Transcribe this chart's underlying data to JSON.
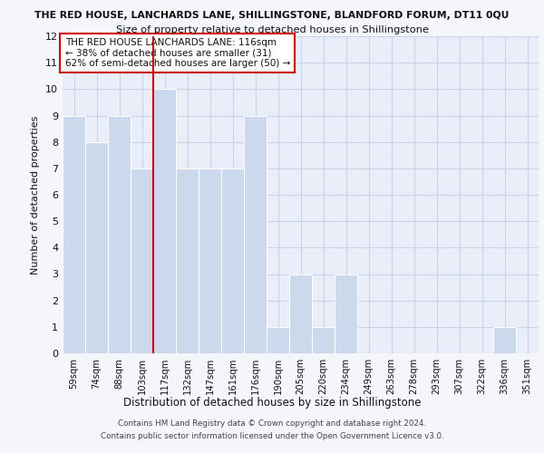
{
  "title_line1": "THE RED HOUSE, LANCHARDS LANE, SHILLINGSTONE, BLANDFORD FORUM, DT11 0QU",
  "title_line2": "Size of property relative to detached houses in Shillingstone",
  "xlabel": "Distribution of detached houses by size in Shillingstone",
  "ylabel": "Number of detached properties",
  "categories": [
    "59sqm",
    "74sqm",
    "88sqm",
    "103sqm",
    "117sqm",
    "132sqm",
    "147sqm",
    "161sqm",
    "176sqm",
    "190sqm",
    "205sqm",
    "220sqm",
    "234sqm",
    "249sqm",
    "263sqm",
    "278sqm",
    "293sqm",
    "307sqm",
    "322sqm",
    "336sqm",
    "351sqm"
  ],
  "values": [
    9,
    8,
    9,
    7,
    10,
    7,
    7,
    7,
    9,
    1,
    3,
    1,
    3,
    0,
    0,
    0,
    0,
    0,
    0,
    1,
    0
  ],
  "bar_color": "#ccd9ed",
  "bar_edgecolor": "#ffffff",
  "grid_color": "#c8d4e8",
  "highlight_index": 4,
  "highlight_line_color": "#cc0000",
  "annotation_text_line1": "THE RED HOUSE LANCHARDS LANE: 116sqm",
  "annotation_text_line2": "← 38% of detached houses are smaller (31)",
  "annotation_text_line3": "62% of semi-detached houses are larger (50) →",
  "annotation_box_edgecolor": "#cc0000",
  "annotation_box_facecolor": "#ffffff",
  "ylim": [
    0,
    12
  ],
  "yticks": [
    0,
    1,
    2,
    3,
    4,
    5,
    6,
    7,
    8,
    9,
    10,
    11,
    12
  ],
  "footer_line1": "Contains HM Land Registry data © Crown copyright and database right 2024.",
  "footer_line2": "Contains public sector information licensed under the Open Government Licence v3.0.",
  "bg_color": "#f4f6fb",
  "plot_bg_color": "#eaeef8"
}
